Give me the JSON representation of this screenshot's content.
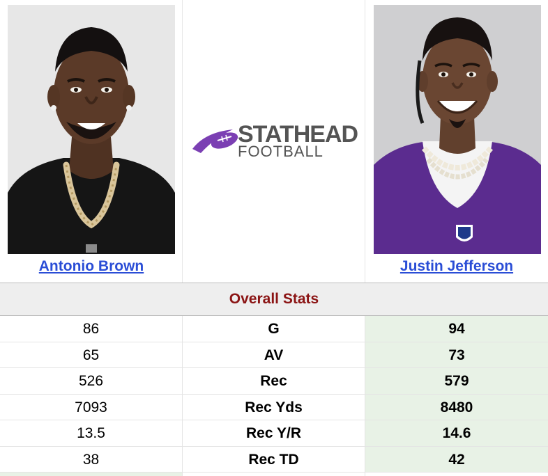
{
  "players": {
    "left": {
      "name": "Antonio Brown",
      "jersey_color": "#151515",
      "skin_color": "#5b3a28",
      "bg_color": "#e7e7e7"
    },
    "right": {
      "name": "Justin Jefferson",
      "jersey_color": "#5b2c8f",
      "skin_color": "#6a4632",
      "bg_color": "#cfcfd1"
    }
  },
  "logo": {
    "word1": "STATHEAD",
    "word2": "FOOTBALL",
    "icon": "football-swoosh-icon",
    "accent_color": "#7b3fb3",
    "text_color": "#545454"
  },
  "section": {
    "title": "Overall Stats"
  },
  "colors": {
    "winner_bg": "#e8f2e6",
    "section_title": "#8b1414",
    "link": "#2a4dd6"
  },
  "stats": [
    {
      "label": "G",
      "left": "86",
      "right": "94"
    },
    {
      "label": "AV",
      "left": "65",
      "right": "73"
    },
    {
      "label": "Rec",
      "left": "526",
      "right": "579"
    },
    {
      "label": "Rec Yds",
      "left": "7093",
      "right": "8480"
    },
    {
      "label": "Rec Y/R",
      "left": "13.5",
      "right": "14.6"
    },
    {
      "label": "Rec TD",
      "left": "38",
      "right": "42"
    }
  ]
}
